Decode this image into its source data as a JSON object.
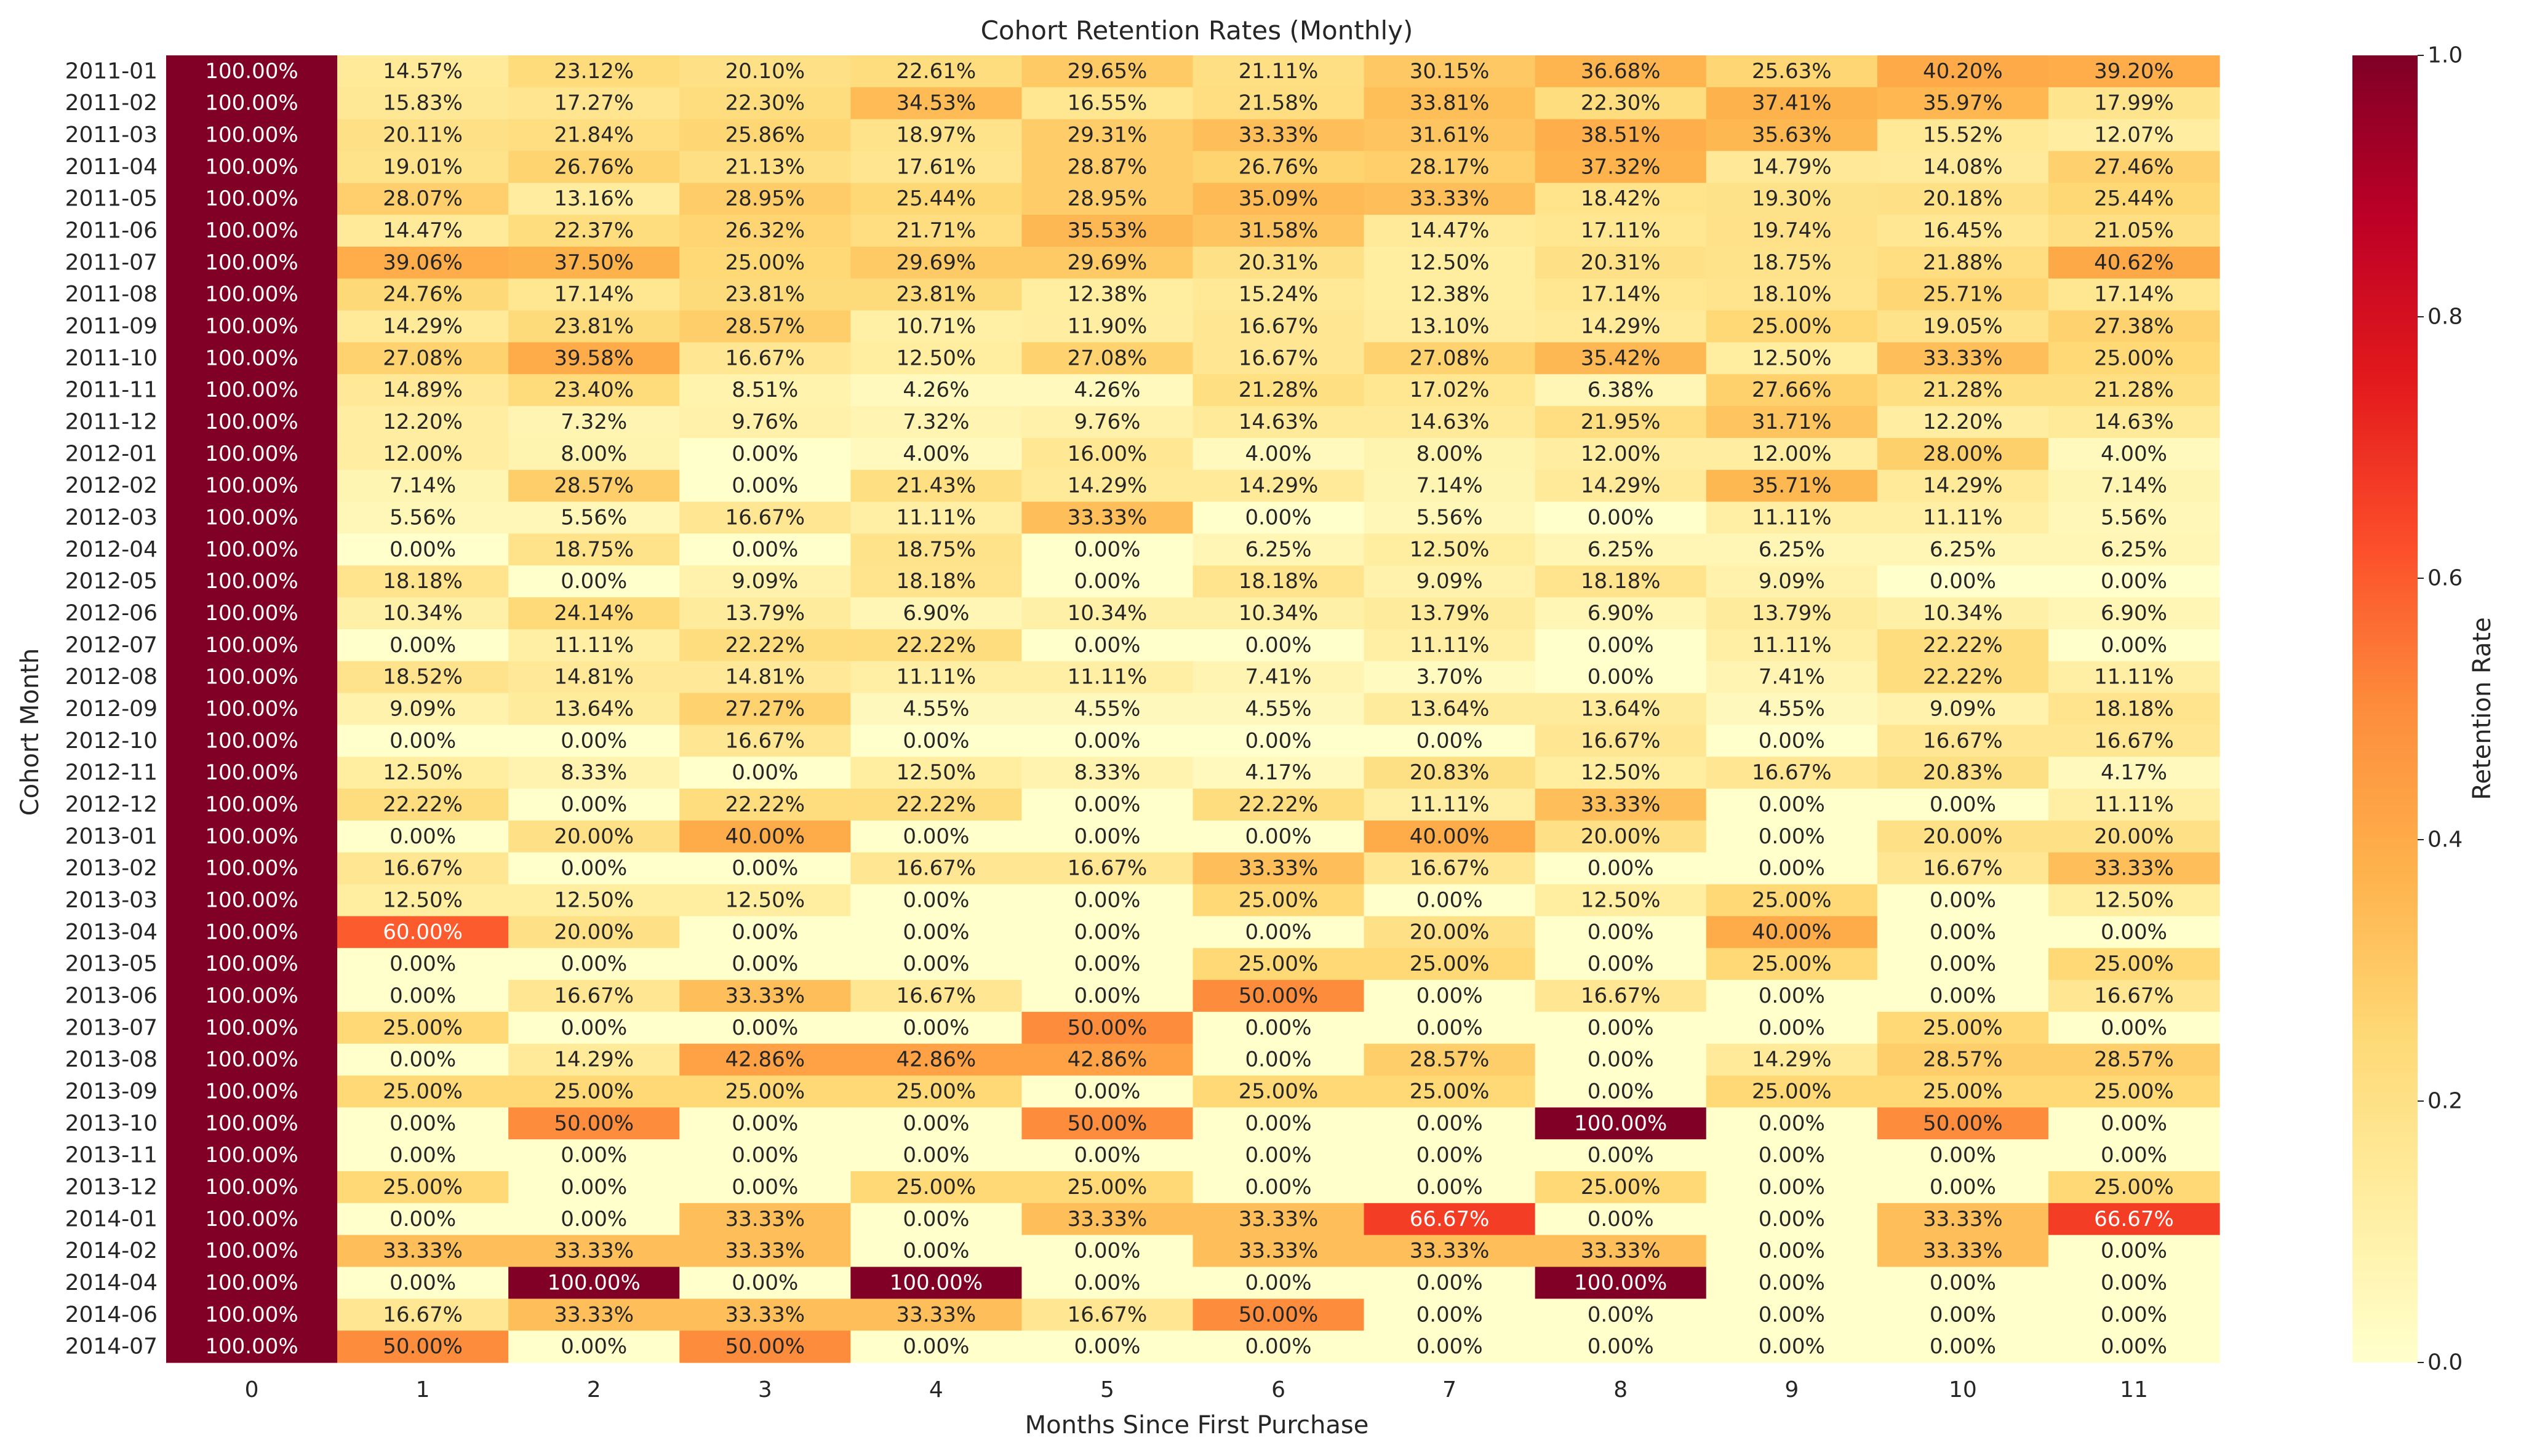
{
  "chart_data": {
    "type": "heatmap",
    "title": "Cohort Retention Rates (Monthly)",
    "xlabel": "Months Since First Purchase",
    "ylabel": "Cohort Month",
    "colorbar_label": "Retention Rate",
    "colormap": "YlOrRd",
    "value_range": [
      0.0,
      1.0
    ],
    "colorbar_ticks": [
      "0.0",
      "0.2",
      "0.4",
      "0.6",
      "0.8",
      "1.0"
    ],
    "x_categories": [
      "0",
      "1",
      "2",
      "3",
      "4",
      "5",
      "6",
      "7",
      "8",
      "9",
      "10",
      "11"
    ],
    "y_categories": [
      "2011-01",
      "2011-02",
      "2011-03",
      "2011-04",
      "2011-05",
      "2011-06",
      "2011-07",
      "2011-08",
      "2011-09",
      "2011-10",
      "2011-11",
      "2011-12",
      "2012-01",
      "2012-02",
      "2012-03",
      "2012-04",
      "2012-05",
      "2012-06",
      "2012-07",
      "2012-08",
      "2012-09",
      "2012-10",
      "2012-11",
      "2012-12",
      "2013-01",
      "2013-02",
      "2013-03",
      "2013-04",
      "2013-05",
      "2013-06",
      "2013-07",
      "2013-08",
      "2013-09",
      "2013-10",
      "2013-11",
      "2013-12",
      "2014-01",
      "2014-02",
      "2014-04",
      "2014-06",
      "2014-07"
    ],
    "values": [
      [
        100.0,
        14.57,
        23.12,
        20.1,
        22.61,
        29.65,
        21.11,
        30.15,
        36.68,
        25.63,
        40.2,
        39.2
      ],
      [
        100.0,
        15.83,
        17.27,
        22.3,
        34.53,
        16.55,
        21.58,
        33.81,
        22.3,
        37.41,
        35.97,
        17.99
      ],
      [
        100.0,
        20.11,
        21.84,
        25.86,
        18.97,
        29.31,
        33.33,
        31.61,
        38.51,
        35.63,
        15.52,
        12.07
      ],
      [
        100.0,
        19.01,
        26.76,
        21.13,
        17.61,
        28.87,
        26.76,
        28.17,
        37.32,
        14.79,
        14.08,
        27.46
      ],
      [
        100.0,
        28.07,
        13.16,
        28.95,
        25.44,
        28.95,
        35.09,
        33.33,
        18.42,
        19.3,
        20.18,
        25.44
      ],
      [
        100.0,
        14.47,
        22.37,
        26.32,
        21.71,
        35.53,
        31.58,
        14.47,
        17.11,
        19.74,
        16.45,
        21.05
      ],
      [
        100.0,
        39.06,
        37.5,
        25.0,
        29.69,
        29.69,
        20.31,
        12.5,
        20.31,
        18.75,
        21.88,
        40.62
      ],
      [
        100.0,
        24.76,
        17.14,
        23.81,
        23.81,
        12.38,
        15.24,
        12.38,
        17.14,
        18.1,
        25.71,
        17.14
      ],
      [
        100.0,
        14.29,
        23.81,
        28.57,
        10.71,
        11.9,
        16.67,
        13.1,
        14.29,
        25.0,
        19.05,
        27.38
      ],
      [
        100.0,
        27.08,
        39.58,
        16.67,
        12.5,
        27.08,
        16.67,
        27.08,
        35.42,
        12.5,
        33.33,
        25.0
      ],
      [
        100.0,
        14.89,
        23.4,
        8.51,
        4.26,
        4.26,
        21.28,
        17.02,
        6.38,
        27.66,
        21.28,
        21.28
      ],
      [
        100.0,
        12.2,
        7.32,
        9.76,
        7.32,
        9.76,
        14.63,
        14.63,
        21.95,
        31.71,
        12.2,
        14.63
      ],
      [
        100.0,
        12.0,
        8.0,
        0.0,
        4.0,
        16.0,
        4.0,
        8.0,
        12.0,
        12.0,
        28.0,
        4.0
      ],
      [
        100.0,
        7.14,
        28.57,
        0.0,
        21.43,
        14.29,
        14.29,
        7.14,
        14.29,
        35.71,
        14.29,
        7.14
      ],
      [
        100.0,
        5.56,
        5.56,
        16.67,
        11.11,
        33.33,
        0.0,
        5.56,
        0.0,
        11.11,
        11.11,
        5.56
      ],
      [
        100.0,
        0.0,
        18.75,
        0.0,
        18.75,
        0.0,
        6.25,
        12.5,
        6.25,
        6.25,
        6.25,
        6.25
      ],
      [
        100.0,
        18.18,
        0.0,
        9.09,
        18.18,
        0.0,
        18.18,
        9.09,
        18.18,
        9.09,
        0.0,
        0.0
      ],
      [
        100.0,
        10.34,
        24.14,
        13.79,
        6.9,
        10.34,
        10.34,
        13.79,
        6.9,
        13.79,
        10.34,
        6.9
      ],
      [
        100.0,
        0.0,
        11.11,
        22.22,
        22.22,
        0.0,
        0.0,
        11.11,
        0.0,
        11.11,
        22.22,
        0.0
      ],
      [
        100.0,
        18.52,
        14.81,
        14.81,
        11.11,
        11.11,
        7.41,
        3.7,
        0.0,
        7.41,
        22.22,
        11.11
      ],
      [
        100.0,
        9.09,
        13.64,
        27.27,
        4.55,
        4.55,
        4.55,
        13.64,
        13.64,
        4.55,
        9.09,
        18.18
      ],
      [
        100.0,
        0.0,
        0.0,
        16.67,
        0.0,
        0.0,
        0.0,
        0.0,
        16.67,
        0.0,
        16.67,
        16.67
      ],
      [
        100.0,
        12.5,
        8.33,
        0.0,
        12.5,
        8.33,
        4.17,
        20.83,
        12.5,
        16.67,
        20.83,
        4.17
      ],
      [
        100.0,
        22.22,
        0.0,
        22.22,
        22.22,
        0.0,
        22.22,
        11.11,
        33.33,
        0.0,
        0.0,
        11.11
      ],
      [
        100.0,
        0.0,
        20.0,
        40.0,
        0.0,
        0.0,
        0.0,
        40.0,
        20.0,
        0.0,
        20.0,
        20.0
      ],
      [
        100.0,
        16.67,
        0.0,
        0.0,
        16.67,
        16.67,
        33.33,
        16.67,
        0.0,
        0.0,
        16.67,
        33.33
      ],
      [
        100.0,
        12.5,
        12.5,
        12.5,
        0.0,
        0.0,
        25.0,
        0.0,
        12.5,
        25.0,
        0.0,
        12.5
      ],
      [
        100.0,
        60.0,
        20.0,
        0.0,
        0.0,
        0.0,
        0.0,
        20.0,
        0.0,
        40.0,
        0.0,
        0.0
      ],
      [
        100.0,
        0.0,
        0.0,
        0.0,
        0.0,
        0.0,
        25.0,
        25.0,
        0.0,
        25.0,
        0.0,
        25.0
      ],
      [
        100.0,
        0.0,
        16.67,
        33.33,
        16.67,
        0.0,
        50.0,
        0.0,
        16.67,
        0.0,
        0.0,
        16.67
      ],
      [
        100.0,
        25.0,
        0.0,
        0.0,
        0.0,
        50.0,
        0.0,
        0.0,
        0.0,
        0.0,
        25.0,
        0.0
      ],
      [
        100.0,
        0.0,
        14.29,
        42.86,
        42.86,
        42.86,
        0.0,
        28.57,
        0.0,
        14.29,
        28.57,
        28.57
      ],
      [
        100.0,
        25.0,
        25.0,
        25.0,
        25.0,
        0.0,
        25.0,
        25.0,
        0.0,
        25.0,
        25.0,
        25.0
      ],
      [
        100.0,
        0.0,
        50.0,
        0.0,
        0.0,
        50.0,
        0.0,
        0.0,
        100.0,
        0.0,
        50.0,
        0.0
      ],
      [
        100.0,
        0.0,
        0.0,
        0.0,
        0.0,
        0.0,
        0.0,
        0.0,
        0.0,
        0.0,
        0.0,
        0.0
      ],
      [
        100.0,
        25.0,
        0.0,
        0.0,
        25.0,
        25.0,
        0.0,
        0.0,
        25.0,
        0.0,
        0.0,
        25.0
      ],
      [
        100.0,
        0.0,
        0.0,
        33.33,
        0.0,
        33.33,
        33.33,
        66.67,
        0.0,
        0.0,
        33.33,
        66.67
      ],
      [
        100.0,
        33.33,
        33.33,
        33.33,
        0.0,
        0.0,
        33.33,
        33.33,
        33.33,
        0.0,
        33.33,
        0.0
      ],
      [
        100.0,
        0.0,
        100.0,
        0.0,
        100.0,
        0.0,
        0.0,
        0.0,
        100.0,
        0.0,
        0.0,
        0.0
      ],
      [
        100.0,
        16.67,
        33.33,
        33.33,
        33.33,
        16.67,
        50.0,
        0.0,
        0.0,
        0.0,
        0.0,
        0.0
      ],
      [
        100.0,
        50.0,
        0.0,
        50.0,
        0.0,
        0.0,
        0.0,
        0.0,
        0.0,
        0.0,
        0.0,
        0.0
      ]
    ],
    "value_format": "percent_2dp",
    "grid": false,
    "legend": "colorbar-right"
  }
}
